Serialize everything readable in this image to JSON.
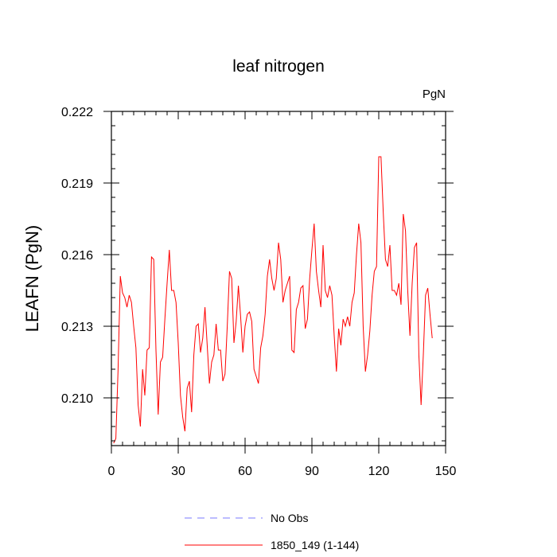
{
  "chart_data": {
    "type": "line",
    "title": "leaf nitrogen",
    "units_label": "PgN",
    "ylabel": "LEAFN  (PgN)",
    "xlabel": "",
    "xlim": [
      0,
      150
    ],
    "ylim": [
      0.208,
      0.222
    ],
    "x_ticks": [
      0,
      30,
      60,
      90,
      120,
      150
    ],
    "x_tick_labels": [
      "0",
      "30",
      "60",
      "90",
      "120",
      "150"
    ],
    "y_ticks": [
      0.21,
      0.213,
      0.216,
      0.219,
      0.222
    ],
    "y_tick_labels": [
      "0.210",
      "0.213",
      "0.216",
      "0.219",
      "0.222"
    ],
    "grid": false,
    "legend_position": "bottom",
    "series": [
      {
        "name": "1850_149 (1-144)",
        "color": "#ff0000",
        "dash": "solid",
        "x": [
          1,
          2,
          3,
          4,
          5,
          6,
          7,
          8,
          9,
          10,
          11,
          12,
          13,
          14,
          15,
          16,
          17,
          18,
          19,
          20,
          21,
          22,
          23,
          24,
          25,
          26,
          27,
          28,
          29,
          30,
          31,
          32,
          33,
          34,
          35,
          36,
          37,
          38,
          39,
          40,
          41,
          42,
          43,
          44,
          45,
          46,
          47,
          48,
          49,
          50,
          51,
          52,
          53,
          54,
          55,
          56,
          57,
          58,
          59,
          60,
          61,
          62,
          63,
          64,
          65,
          66,
          67,
          68,
          69,
          70,
          71,
          72,
          73,
          74,
          75,
          76,
          77,
          78,
          79,
          80,
          81,
          82,
          83,
          84,
          85,
          86,
          87,
          88,
          89,
          90,
          91,
          92,
          93,
          94,
          95,
          96,
          97,
          98,
          99,
          100,
          101,
          102,
          103,
          104,
          105,
          106,
          107,
          108,
          109,
          110,
          111,
          112,
          113,
          114,
          115,
          116,
          117,
          118,
          119,
          120,
          121,
          122,
          123,
          124,
          125,
          126,
          127,
          128,
          129,
          130,
          131,
          132,
          133,
          134,
          135,
          136,
          137,
          138,
          139,
          140,
          141,
          142,
          143,
          144
        ],
        "y": [
          0.2081,
          0.2083,
          0.2112,
          0.2151,
          0.2144,
          0.2142,
          0.2138,
          0.2143,
          0.214,
          0.213,
          0.2121,
          0.2097,
          0.2088,
          0.2112,
          0.2101,
          0.212,
          0.2121,
          0.2159,
          0.2158,
          0.212,
          0.2093,
          0.2115,
          0.2117,
          0.2133,
          0.2148,
          0.2162,
          0.2145,
          0.2145,
          0.214,
          0.2123,
          0.2101,
          0.2092,
          0.2086,
          0.2104,
          0.2107,
          0.2094,
          0.2118,
          0.213,
          0.2131,
          0.2119,
          0.2125,
          0.2138,
          0.2122,
          0.2106,
          0.2115,
          0.2118,
          0.2131,
          0.212,
          0.212,
          0.2107,
          0.211,
          0.213,
          0.2153,
          0.215,
          0.2123,
          0.2132,
          0.2147,
          0.2134,
          0.2119,
          0.213,
          0.2135,
          0.2136,
          0.2132,
          0.2112,
          0.2109,
          0.2106,
          0.2121,
          0.2126,
          0.2135,
          0.2151,
          0.2158,
          0.215,
          0.2145,
          0.215,
          0.2165,
          0.2158,
          0.214,
          0.2145,
          0.2148,
          0.2151,
          0.212,
          0.2119,
          0.2137,
          0.214,
          0.2146,
          0.2147,
          0.2129,
          0.2133,
          0.215,
          0.2162,
          0.2173,
          0.2153,
          0.2145,
          0.2138,
          0.2164,
          0.2145,
          0.2142,
          0.2147,
          0.2143,
          0.2126,
          0.2111,
          0.2129,
          0.2122,
          0.2133,
          0.213,
          0.2134,
          0.213,
          0.214,
          0.2144,
          0.216,
          0.2173,
          0.2165,
          0.213,
          0.2111,
          0.2118,
          0.2128,
          0.2143,
          0.2153,
          0.2155,
          0.2201,
          0.2201,
          0.2178,
          0.2158,
          0.2155,
          0.2164,
          0.2145,
          0.2145,
          0.2143,
          0.2148,
          0.2139,
          0.2177,
          0.217,
          0.2145,
          0.2126,
          0.2148,
          0.2163,
          0.2165,
          0.2118,
          0.2097,
          0.2118,
          0.2143,
          0.2146,
          0.2135,
          0.2125
        ]
      }
    ],
    "legend": [
      {
        "label": "No Obs",
        "color": "#7a7aff",
        "dash": "dashed"
      },
      {
        "label": "1850_149 (1-144)",
        "color": "#ff0000",
        "dash": "solid"
      }
    ]
  }
}
